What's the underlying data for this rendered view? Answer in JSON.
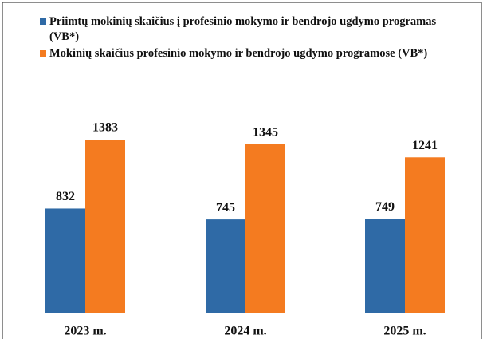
{
  "chart_data": {
    "type": "bar",
    "categories": [
      "2023 m.",
      "2024 m.",
      "2025 m."
    ],
    "series": [
      {
        "name": "Priimtų mokinių skaičius į profesinio mokymo ir bendrojo ugdymo programas (VB*)",
        "color": "#2f6aa6",
        "values": [
          832,
          745,
          749
        ]
      },
      {
        "name": "Mokinių skaičius profesinio mokymo ir bendrojo ugdymo programose (VB*)",
        "color": "#f47b20",
        "values": [
          1383,
          1345,
          1241
        ]
      }
    ],
    "legend": "top-left"
  }
}
